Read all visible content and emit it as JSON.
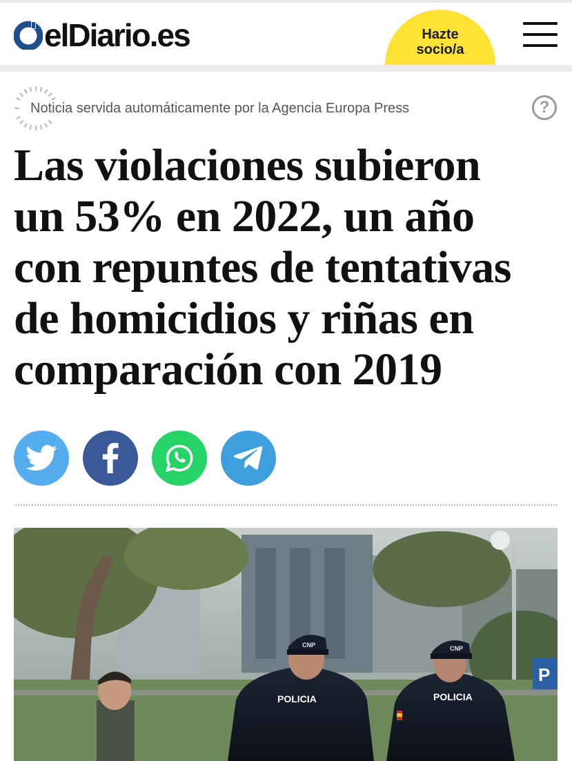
{
  "header": {
    "logo_text": "elDiario.es",
    "cta_line1": "Hazte",
    "cta_line2": "socio/a",
    "menu_icon": "hamburger-icon"
  },
  "notice": {
    "text": "Noticia servida automáticamente por la Agencia Europa Press",
    "help_label": "?"
  },
  "article": {
    "headline_lines": [
      "Las violaciones subieron",
      "un 53% en 2022, un año",
      "con repuntes de tentativas",
      "de homicidios y riñas en",
      "comparación con 2019"
    ]
  },
  "share": {
    "buttons": [
      {
        "network": "twitter",
        "icon": "twitter-icon",
        "color": "#55acee"
      },
      {
        "network": "facebook",
        "icon": "facebook-icon",
        "color": "#3b5998"
      },
      {
        "network": "whatsapp",
        "icon": "whatsapp-icon",
        "color": "#25d366"
      },
      {
        "network": "telegram",
        "icon": "telegram-icon",
        "color": "#3e9fde"
      }
    ]
  },
  "photo": {
    "police_badge_1": "POLICIA",
    "police_badge_2": "POLICIA",
    "cap_1": "CNP",
    "cap_2": "CNP",
    "sign": "P"
  },
  "colors": {
    "cta_yellow": "#ffe236",
    "logo_blue": "#1f4f8b",
    "text": "#111111"
  }
}
